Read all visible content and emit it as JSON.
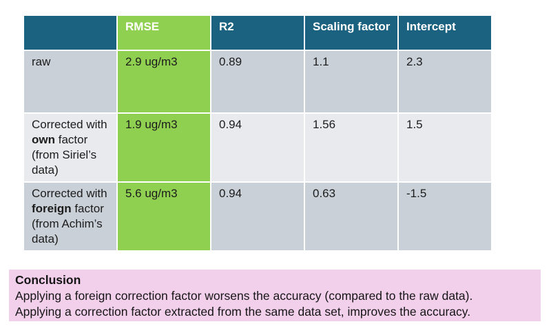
{
  "colors": {
    "header_teal": "#1b6280",
    "accent_green": "#90d050",
    "row_gray_dark": "#cad0d8",
    "row_gray_light": "#e9eaed",
    "conclusion_pink": "#f2cfeb",
    "page_background": "#ffffff"
  },
  "table": {
    "headers": [
      "",
      "RMSE",
      "R2",
      "Scaling factor",
      "Intercept"
    ],
    "rows": [
      {
        "label": {
          "pre": "raw",
          "bold": "",
          "post": ""
        },
        "rmse": "2.9 ug/m3",
        "r2": "0.89",
        "scaling_factor": "1.1",
        "intercept": "2.3"
      },
      {
        "label": {
          "pre": "Corrected with ",
          "bold": "own",
          "post": " factor (from Siriel’s data)"
        },
        "rmse": "1.9 ug/m3",
        "r2": "0.94",
        "scaling_factor": "1.56",
        "intercept": "1.5"
      },
      {
        "label": {
          "pre": "Corrected with ",
          "bold": "foreign",
          "post": " factor (from Achim’s data)"
        },
        "rmse": "5.6 ug/m3",
        "r2": "0.94",
        "scaling_factor": "0.63",
        "intercept": "-1.5"
      }
    ]
  },
  "conclusion": {
    "title": "Conclusion",
    "lines": [
      "Applying a foreign correction factor worsens the accuracy (compared to the raw data).",
      "Applying a correction factor extracted from the same data set, improves the accuracy."
    ]
  }
}
